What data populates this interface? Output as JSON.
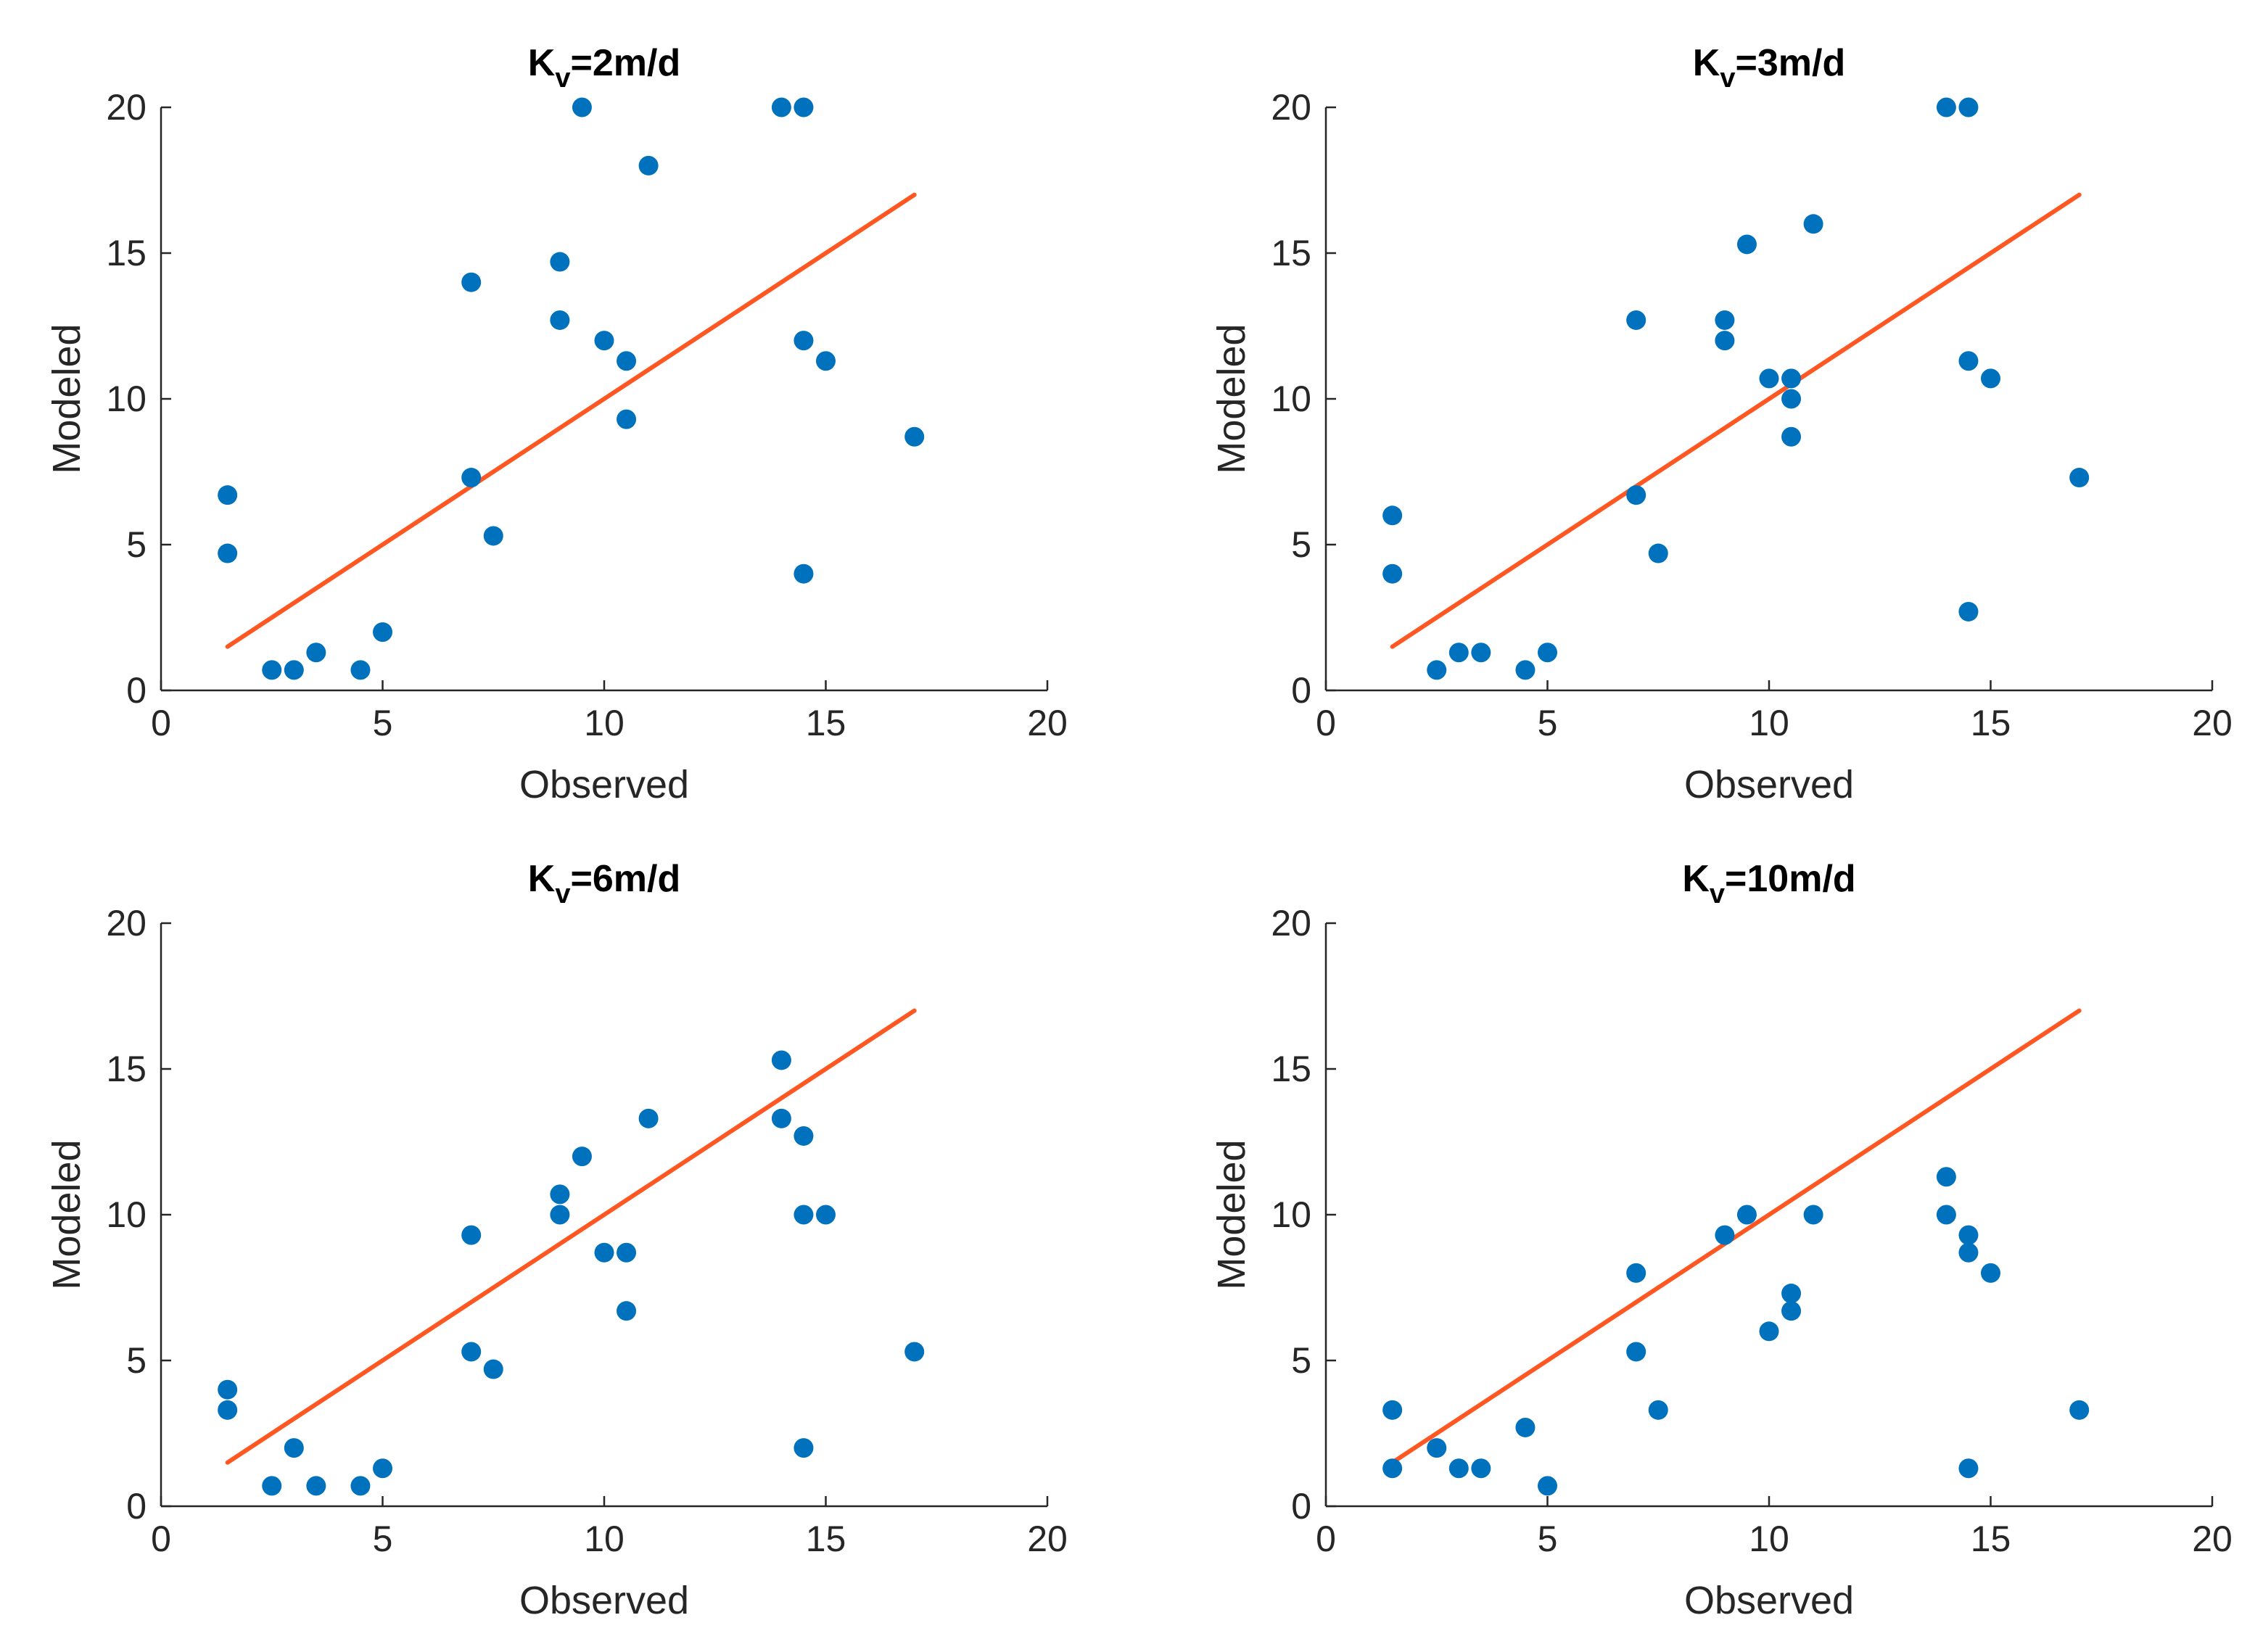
{
  "colors": {
    "points": "#0072BD",
    "line": "#FF5722",
    "axis": "#262626",
    "background": "#ffffff"
  },
  "chart_data": [
    {
      "type": "scatter",
      "title": "K",
      "title_sub": "v",
      "title_rest": "=2m/d",
      "xlabel": "Observed",
      "ylabel": "Modeled",
      "xlim": [
        0,
        20
      ],
      "ylim": [
        0,
        20
      ],
      "xticks": [
        "0",
        "5",
        "10",
        "15",
        "20"
      ],
      "yticks": [
        "0",
        "5",
        "10",
        "15",
        "20"
      ],
      "grid": false,
      "points": [
        [
          1.5,
          6.7
        ],
        [
          1.5,
          4.7
        ],
        [
          2.5,
          0.7
        ],
        [
          3,
          0.7
        ],
        [
          3.5,
          1.3
        ],
        [
          4.5,
          0.7
        ],
        [
          5,
          2
        ],
        [
          7,
          14
        ],
        [
          7,
          7.3
        ],
        [
          7.5,
          5.3
        ],
        [
          9,
          14.7
        ],
        [
          9,
          12.7
        ],
        [
          9.5,
          20
        ],
        [
          10,
          12
        ],
        [
          10.5,
          11.3
        ],
        [
          10.5,
          9.3
        ],
        [
          11,
          18
        ],
        [
          14,
          20
        ],
        [
          14.5,
          20
        ],
        [
          14.5,
          12
        ],
        [
          14.5,
          4
        ],
        [
          15,
          11.3
        ],
        [
          17,
          8.7
        ]
      ],
      "fit_line": [
        [
          1.5,
          1.5
        ],
        [
          17,
          17
        ]
      ]
    },
    {
      "type": "scatter",
      "title": "K",
      "title_sub": "v",
      "title_rest": "=3m/d",
      "xlabel": "Observed",
      "ylabel": "Modeled",
      "xlim": [
        0,
        20
      ],
      "ylim": [
        0,
        20
      ],
      "xticks": [
        "0",
        "5",
        "10",
        "15",
        "20"
      ],
      "yticks": [
        "0",
        "5",
        "10",
        "15",
        "20"
      ],
      "grid": false,
      "points": [
        [
          1.5,
          6
        ],
        [
          1.5,
          4
        ],
        [
          2.5,
          0.7
        ],
        [
          3,
          1.3
        ],
        [
          3.5,
          1.3
        ],
        [
          4.5,
          0.7
        ],
        [
          5,
          1.3
        ],
        [
          7,
          12.7
        ],
        [
          7,
          6.7
        ],
        [
          7.5,
          4.7
        ],
        [
          9,
          12.7
        ],
        [
          9,
          12
        ],
        [
          9.5,
          15.3
        ],
        [
          10,
          10.7
        ],
        [
          10.5,
          10.7
        ],
        [
          10.5,
          10
        ],
        [
          10.5,
          8.7
        ],
        [
          11,
          16
        ],
        [
          14,
          20
        ],
        [
          14.5,
          20
        ],
        [
          14.5,
          11.3
        ],
        [
          14.5,
          2.7
        ],
        [
          15,
          10.7
        ],
        [
          17,
          7.3
        ]
      ],
      "fit_line": [
        [
          1.5,
          1.5
        ],
        [
          17,
          17
        ]
      ]
    },
    {
      "type": "scatter",
      "title": "K",
      "title_sub": "v",
      "title_rest": "=6m/d",
      "xlabel": "Observed",
      "ylabel": "Modeled",
      "xlim": [
        0,
        20
      ],
      "ylim": [
        0,
        20
      ],
      "xticks": [
        "0",
        "5",
        "10",
        "15",
        "20"
      ],
      "yticks": [
        "0",
        "5",
        "10",
        "15",
        "20"
      ],
      "grid": false,
      "points": [
        [
          1.5,
          4
        ],
        [
          1.5,
          3.3
        ],
        [
          2.5,
          0.7
        ],
        [
          3,
          2
        ],
        [
          3.5,
          0.7
        ],
        [
          4.5,
          0.7
        ],
        [
          5,
          1.3
        ],
        [
          7,
          9.3
        ],
        [
          7,
          5.3
        ],
        [
          7.5,
          4.7
        ],
        [
          9,
          10.7
        ],
        [
          9,
          10
        ],
        [
          9.5,
          12
        ],
        [
          10,
          8.7
        ],
        [
          10.5,
          8.7
        ],
        [
          10.5,
          6.7
        ],
        [
          11,
          13.3
        ],
        [
          14,
          15.3
        ],
        [
          14,
          13.3
        ],
        [
          14.5,
          12.7
        ],
        [
          14.5,
          10
        ],
        [
          14.5,
          2
        ],
        [
          15,
          10
        ],
        [
          17,
          5.3
        ]
      ],
      "fit_line": [
        [
          1.5,
          1.5
        ],
        [
          17,
          17
        ]
      ]
    },
    {
      "type": "scatter",
      "title": "K",
      "title_sub": "v",
      "title_rest": "=10m/d",
      "xlabel": "Observed",
      "ylabel": "Modeled",
      "xlim": [
        0,
        20
      ],
      "ylim": [
        0,
        20
      ],
      "xticks": [
        "0",
        "5",
        "10",
        "15",
        "20"
      ],
      "yticks": [
        "0",
        "5",
        "10",
        "15",
        "20"
      ],
      "grid": false,
      "points": [
        [
          1.5,
          3.3
        ],
        [
          1.5,
          1.3
        ],
        [
          2.5,
          2
        ],
        [
          3,
          1.3
        ],
        [
          3.5,
          1.3
        ],
        [
          4.5,
          2.7
        ],
        [
          5,
          0.7
        ],
        [
          7,
          8
        ],
        [
          7,
          5.3
        ],
        [
          7.5,
          3.3
        ],
        [
          9,
          9.3
        ],
        [
          9.5,
          10
        ],
        [
          10,
          6
        ],
        [
          10.5,
          7.3
        ],
        [
          10.5,
          6.7
        ],
        [
          11,
          10
        ],
        [
          14,
          11.3
        ],
        [
          14,
          10
        ],
        [
          14.5,
          9.3
        ],
        [
          14.5,
          8.7
        ],
        [
          14.5,
          1.3
        ],
        [
          15,
          8
        ],
        [
          17,
          3.3
        ]
      ],
      "fit_line": [
        [
          1.5,
          1.5
        ],
        [
          17,
          17
        ]
      ]
    }
  ]
}
